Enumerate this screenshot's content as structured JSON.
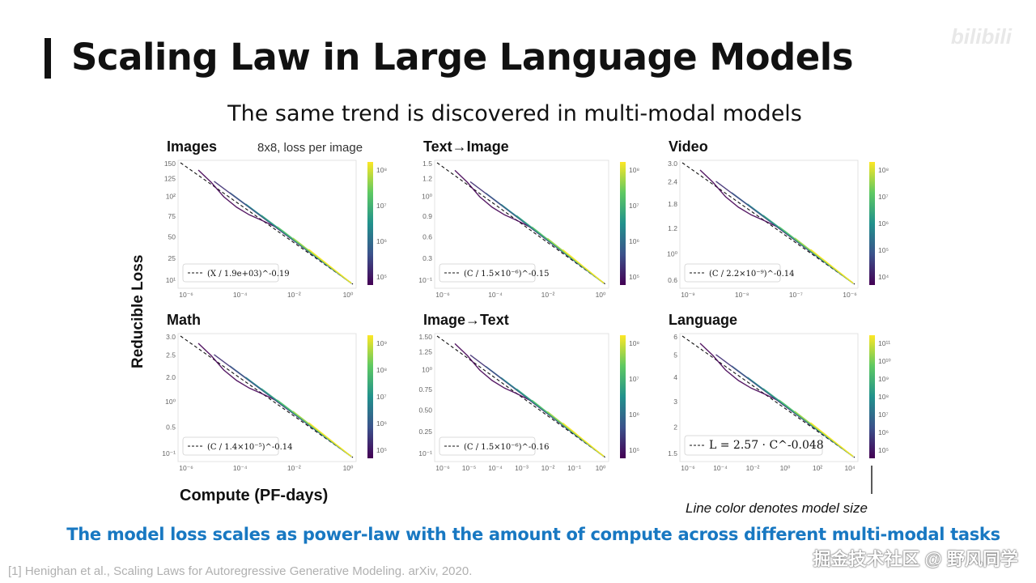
{
  "slide": {
    "title": "Scaling Law in Large Language Models",
    "subtitle": "The same trend is discovered in multi-modal models",
    "y_axis_label": "Reducible  Loss",
    "x_axis_label": "Compute (PF-days)",
    "legend_note": "Line color denotes model size",
    "conclusion": "The model loss scales as power-law with the amount of compute across different multi-modal tasks",
    "reference": "[1] Henighan et al., Scaling Laws for Autoregressive Generative Modeling. arXiv, 2020.",
    "footer_brand": "掘金技术社区 @ 野风同学"
  },
  "colors": {
    "accent_blue": "#1878c2",
    "viridis": [
      "#440154",
      "#3b528b",
      "#21918c",
      "#5ec962",
      "#fde725"
    ]
  },
  "chart_data": [
    {
      "type": "line",
      "title": "Images",
      "note": "8x8, loss per image",
      "scale": "log-log",
      "xticks": [
        "10⁻⁶",
        "10⁻⁴",
        "10⁻²",
        "10⁰"
      ],
      "yticks": [
        "150",
        "125",
        "10²",
        "75",
        "50",
        "25",
        "10¹"
      ],
      "legend": "(X / 1.9e+03)^-0.19",
      "fit_exponent": -0.19,
      "colorbar_ticks": [
        "10⁸",
        "10⁷",
        "10⁶",
        "10⁵"
      ]
    },
    {
      "type": "line",
      "title": "Text→Image",
      "scale": "log-log",
      "xticks": [
        "10⁻⁶",
        "10⁻⁴",
        "10⁻²",
        "10⁰"
      ],
      "yticks": [
        "1.5",
        "1.2",
        "10⁰",
        "0.9",
        "0.6",
        "0.3",
        "10⁻¹"
      ],
      "legend": "(C / 1.5×10⁻⁶)^-0.15",
      "fit_exponent": -0.15,
      "colorbar_ticks": [
        "10⁸",
        "10⁷",
        "10⁶",
        "10⁵"
      ]
    },
    {
      "type": "line",
      "title": "Video",
      "scale": "log-log",
      "xticks": [
        "10⁻⁹",
        "10⁻⁸",
        "10⁻⁷",
        "10⁻⁶"
      ],
      "yticks": [
        "3.0",
        "2.4",
        "1.8",
        "1.2",
        "10⁰",
        "0.6"
      ],
      "legend": "(C / 2.2×10⁻⁹)^-0.14",
      "fit_exponent": -0.14,
      "colorbar_ticks": [
        "10⁸",
        "10⁷",
        "10⁶",
        "10⁵",
        "10⁴"
      ]
    },
    {
      "type": "line",
      "title": "Math",
      "scale": "log-log",
      "xticks": [
        "10⁻⁶",
        "10⁻⁴",
        "10⁻²",
        "10⁰"
      ],
      "yticks": [
        "3.0",
        "2.5",
        "2.0",
        "10⁰",
        "0.5",
        "10⁻¹"
      ],
      "legend": "(C / 1.4×10⁻⁵)^-0.14",
      "fit_exponent": -0.14,
      "colorbar_ticks": [
        "10⁹",
        "10⁸",
        "10⁷",
        "10⁶",
        "10⁵"
      ]
    },
    {
      "type": "line",
      "title": "Image→Text",
      "scale": "log-log",
      "xticks": [
        "10⁻⁶",
        "10⁻⁵",
        "10⁻⁴",
        "10⁻³",
        "10⁻²",
        "10⁻¹",
        "10⁰"
      ],
      "yticks": [
        "1.50",
        "1.25",
        "10⁰",
        "0.75",
        "0.50",
        "0.25",
        "10⁻¹"
      ],
      "legend": "(C / 1.5×10⁻⁶)^-0.16",
      "fit_exponent": -0.16,
      "colorbar_ticks": [
        "10⁸",
        "10⁷",
        "10⁶",
        "10⁵"
      ]
    },
    {
      "type": "line",
      "title": "Language",
      "scale": "log-log",
      "xticks": [
        "10⁻⁶",
        "10⁻⁴",
        "10⁻²",
        "10⁰",
        "10²",
        "10⁴"
      ],
      "yticks": [
        "6",
        "5",
        "4",
        "3",
        "2",
        "1.5"
      ],
      "legend": "L = 2.57 · C^-0.048",
      "fit_exponent": -0.048,
      "colorbar_ticks": [
        "10¹¹",
        "10¹⁰",
        "10⁹",
        "10⁸",
        "10⁷",
        "10⁶",
        "10⁵"
      ]
    }
  ]
}
